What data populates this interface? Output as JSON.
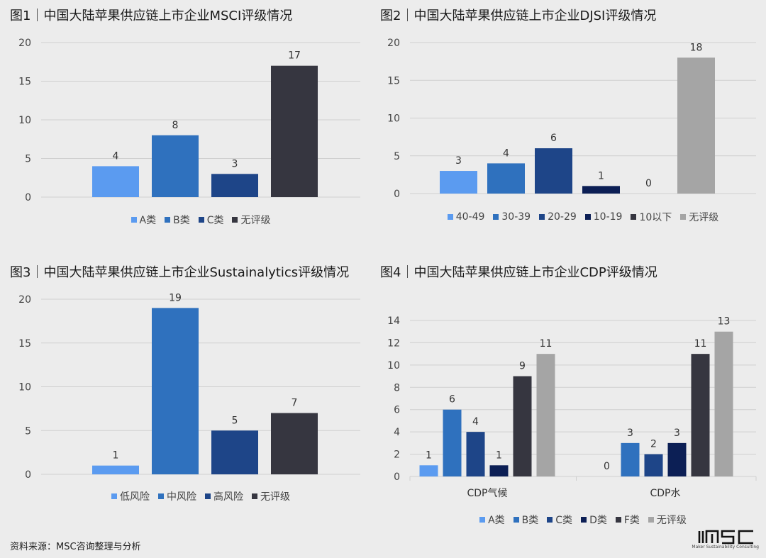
{
  "colors": {
    "lightblue": "#5b9bf0",
    "blue": "#2f71be",
    "darkblue": "#1e4588",
    "navy": "#0c1f55",
    "charcoal": "#363640",
    "gray": "#a5a5a5",
    "grid": "#cfcfcf"
  },
  "chart_data": [
    {
      "type": "bar",
      "title": "图1｜中国大陆苹果供应链上市企业MSCI评级情况",
      "categories": [
        ""
      ],
      "series": [
        {
          "name": "A类",
          "color": "lightblue",
          "values": [
            4
          ]
        },
        {
          "name": "B类",
          "color": "blue",
          "values": [
            8
          ]
        },
        {
          "name": "C类",
          "color": "darkblue",
          "values": [
            3
          ]
        },
        {
          "name": "无评级",
          "color": "charcoal",
          "values": [
            17
          ]
        }
      ],
      "yticks": [
        0,
        5,
        10,
        15,
        20
      ],
      "ylim": [
        0,
        20
      ],
      "grid": true,
      "legend": "bottom"
    },
    {
      "type": "bar",
      "title": "图2｜中国大陆苹果供应链上市企业DJSI评级情况",
      "categories": [
        ""
      ],
      "series": [
        {
          "name": "40-49",
          "color": "lightblue",
          "values": [
            3
          ]
        },
        {
          "name": "30-39",
          "color": "blue",
          "values": [
            4
          ]
        },
        {
          "name": "20-29",
          "color": "darkblue",
          "values": [
            6
          ]
        },
        {
          "name": "10-19",
          "color": "navy",
          "values": [
            1
          ]
        },
        {
          "name": "10以下",
          "color": "charcoal",
          "values": [
            0
          ]
        },
        {
          "name": "无评级",
          "color": "gray",
          "values": [
            18
          ]
        }
      ],
      "yticks": [
        0,
        5,
        10,
        15,
        20
      ],
      "ylim": [
        0,
        20
      ],
      "grid": true,
      "legend": "bottom"
    },
    {
      "type": "bar",
      "title": "图3｜中国大陆苹果供应链上市企业Sustainalytics评级情况",
      "categories": [
        ""
      ],
      "series": [
        {
          "name": "低风险",
          "color": "lightblue",
          "values": [
            1
          ]
        },
        {
          "name": "中风险",
          "color": "blue",
          "values": [
            19
          ]
        },
        {
          "name": "高风险",
          "color": "darkblue",
          "values": [
            5
          ]
        },
        {
          "name": "无评级",
          "color": "charcoal",
          "values": [
            7
          ]
        }
      ],
      "yticks": [
        0,
        5,
        10,
        15,
        20
      ],
      "ylim": [
        0,
        20
      ],
      "grid": true,
      "legend": "bottom"
    },
    {
      "type": "bar",
      "title": "图4｜中国大陆苹果供应链上市企业CDP评级情况",
      "categories": [
        "CDP气候",
        "CDP水"
      ],
      "series": [
        {
          "name": "A类",
          "color": "lightblue",
          "values": [
            1,
            0
          ]
        },
        {
          "name": "B类",
          "color": "blue",
          "values": [
            6,
            3
          ]
        },
        {
          "name": "C类",
          "color": "darkblue",
          "values": [
            4,
            2
          ]
        },
        {
          "name": "D类",
          "color": "navy",
          "values": [
            1,
            3
          ]
        },
        {
          "name": "F类",
          "color": "charcoal",
          "values": [
            9,
            11
          ]
        },
        {
          "name": "无评级",
          "color": "gray",
          "values": [
            11,
            13
          ]
        }
      ],
      "yticks": [
        0,
        2,
        4,
        6,
        8,
        10,
        12,
        14
      ],
      "ylim": [
        0,
        14
      ],
      "grid": true,
      "legend": "bottom"
    }
  ],
  "footer": {
    "source": "资料来源：MSC咨询整理与分析",
    "logo_text": "MSC",
    "logo_subtitle": "Maker Sustainability Consulting"
  }
}
